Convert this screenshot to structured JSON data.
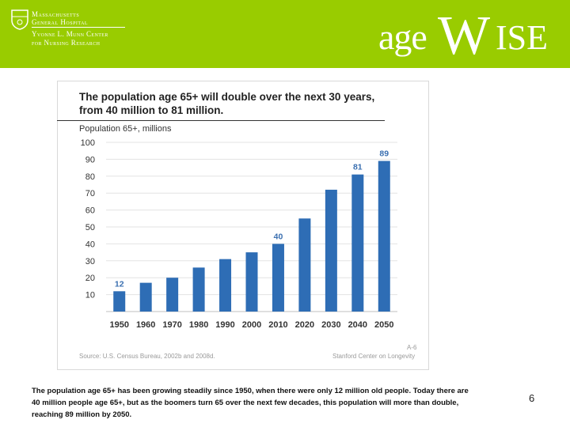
{
  "header": {
    "org_line1": "Massachusetts",
    "org_line2": "General Hospital",
    "center_line1": "Yvonne L. Munn Center",
    "center_line2": "for Nursing Research",
    "brand_age": "age",
    "brand_w": "W",
    "brand_ise": "ISE",
    "banner_color": "#99cc00"
  },
  "chart_data": {
    "type": "bar",
    "title": "The population age 65+ will double over the next 30 years, from 40 million to 81 million.",
    "ylabel": "Population 65+, millions",
    "xlabel": "",
    "categories": [
      "1950",
      "1960",
      "1970",
      "1980",
      "1990",
      "2000",
      "2010",
      "2020",
      "2030",
      "2040",
      "2050"
    ],
    "values": [
      12,
      17,
      20,
      26,
      31,
      35,
      40,
      55,
      72,
      81,
      89
    ],
    "data_labels": [
      "12",
      "",
      "",
      "",
      "",
      "",
      "40",
      "",
      "",
      "81",
      "89"
    ],
    "yticks": [
      "10",
      "20",
      "30",
      "40",
      "50",
      "60",
      "70",
      "80",
      "90",
      "100"
    ],
    "ylim": [
      0,
      100
    ],
    "grid": true,
    "bar_color": "#2e6db5",
    "label_color": "#3a6fb0",
    "source_left": "Source: U.S. Census Bureau, 2002b and 2008d.",
    "source_right": "Stanford Center on Longevity",
    "page_code": "A-6"
  },
  "caption": {
    "text": "The population age 65+ has been growing steadily since 1950, when there were only 12 million old people. Today there are 40 million people age 65+, but as the boomers turn 65 over the next few decades, this population will more than double, reaching 89 million by 2050."
  },
  "slide_number": "6"
}
